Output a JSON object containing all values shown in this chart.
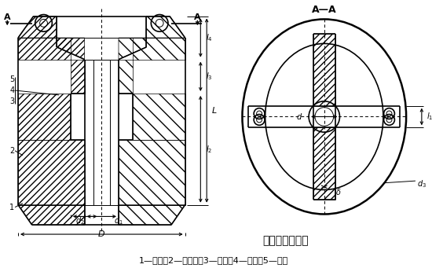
{
  "title": "立式夹壳联轴器",
  "subtitle": "1—夹壳；2—悬吊环；3—垫圈；4—螺母；5—螺栓",
  "section_label": "A—A",
  "bg_color": "#ffffff",
  "line_color": "#000000"
}
